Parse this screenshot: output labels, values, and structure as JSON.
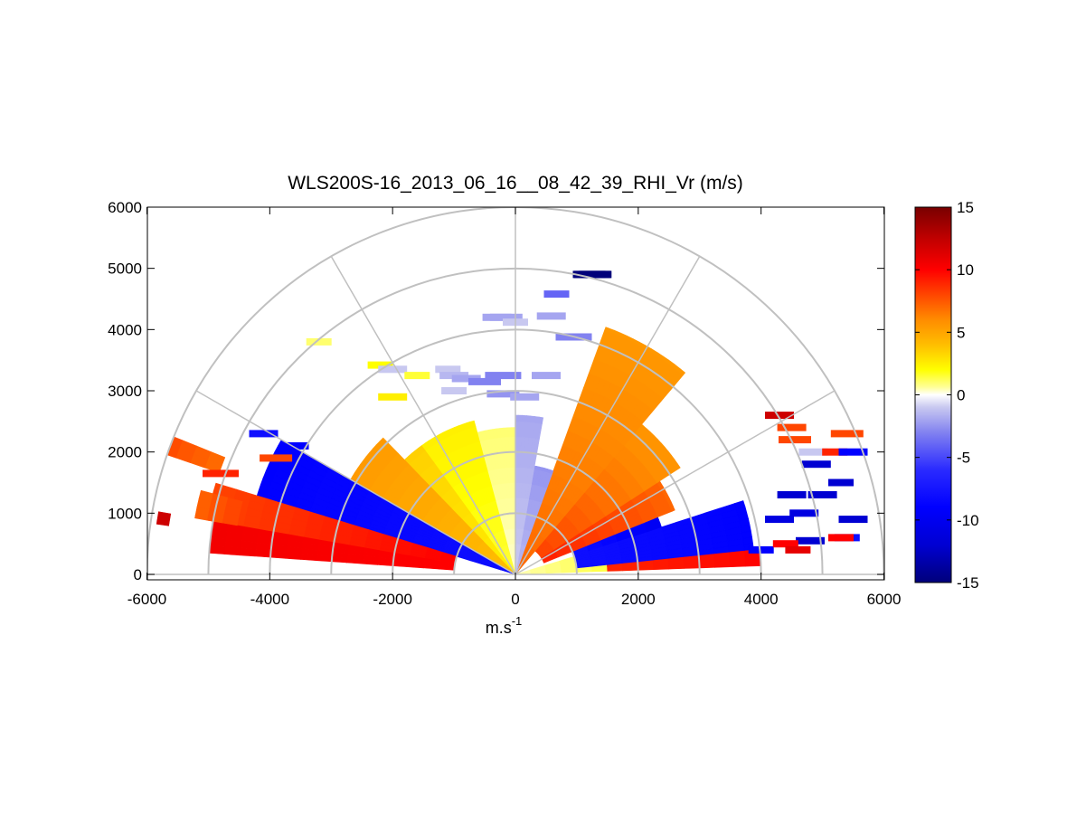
{
  "chart_data": {
    "type": "heatmap",
    "subtype": "polar-sector-rhi",
    "title": "WLS200S-16_2013_06_16__08_42_39_RHI_Vr (m/s)",
    "xlabel_base": "m.s",
    "xlabel_sup": "-1",
    "ylabel": "",
    "xlim": [
      -6000,
      6000
    ],
    "ylim": [
      0,
      6000
    ],
    "x_ticks": [
      -6000,
      -4000,
      -2000,
      0,
      2000,
      4000,
      6000
    ],
    "y_ticks": [
      0,
      1000,
      2000,
      3000,
      4000,
      5000,
      6000
    ],
    "polar_grid": {
      "range_rings": [
        1000,
        2000,
        3000,
        4000,
        5000,
        6000
      ],
      "spokes_deg": [
        0,
        30,
        60,
        90,
        120,
        150,
        180
      ],
      "color": "#c0c0c0"
    },
    "colorbar": {
      "min": -15,
      "max": 15,
      "ticks": [
        -15,
        -10,
        -5,
        0,
        5,
        10,
        15
      ],
      "stops": [
        [
          -15,
          "#00007a"
        ],
        [
          -12,
          "#0000d2"
        ],
        [
          -9,
          "#0000ff"
        ],
        [
          -6,
          "#2a2aff"
        ],
        [
          -3,
          "#8282f0"
        ],
        [
          -1,
          "#c8c8f0"
        ],
        [
          0,
          "#ffffff"
        ],
        [
          0.6,
          "#ffff9a"
        ],
        [
          2,
          "#ffff00"
        ],
        [
          4,
          "#ffbe00"
        ],
        [
          6,
          "#ff8c00"
        ],
        [
          8,
          "#ff4600"
        ],
        [
          10,
          "#ff0000"
        ],
        [
          12.5,
          "#c00000"
        ],
        [
          15,
          "#780000"
        ]
      ]
    },
    "sectors": [
      {
        "a0": 2,
        "a1": 17,
        "r0": 0,
        "r1": 1500,
        "v0": 0.5,
        "v1": 1.5
      },
      {
        "a0": 2,
        "a1": 6,
        "r0": 1500,
        "r1": 4000,
        "v0": 9,
        "v1": 10
      },
      {
        "a0": 6,
        "a1": 18,
        "r0": 1000,
        "r1": 3900,
        "v0": -8,
        "v1": -9
      },
      {
        "a0": 18,
        "a1": 22,
        "r0": 1000,
        "r1": 2500,
        "v0": -8,
        "v1": -10
      },
      {
        "a0": 22,
        "a1": 33,
        "r0": 500,
        "r1": 2800,
        "v0": 9,
        "v1": 7
      },
      {
        "a0": 33,
        "a1": 50,
        "r0": 500,
        "r1": 3200,
        "v0": 8,
        "v1": 5.5
      },
      {
        "a0": 50,
        "a1": 70,
        "r0": 0,
        "r1": 4300,
        "v0": 7,
        "v1": 5.5
      },
      {
        "a0": 70,
        "a1": 80,
        "r0": 0,
        "r1": 1800,
        "v0": -1.5,
        "v1": -2.5
      },
      {
        "a0": 80,
        "a1": 90,
        "r0": 0,
        "r1": 2600,
        "v0": -1,
        "v1": -2
      },
      {
        "a0": 90,
        "a1": 105,
        "r0": 0,
        "r1": 2400,
        "v0": 0.3,
        "v1": 1
      },
      {
        "a0": 105,
        "a1": 126,
        "r0": 0,
        "r1": 2600,
        "v0": 1.5,
        "v1": 2.5
      },
      {
        "a0": 126,
        "a1": 134,
        "r0": 0,
        "r1": 2600,
        "v0": 2.5,
        "v1": 3.5
      },
      {
        "a0": 134,
        "a1": 150,
        "r0": 0,
        "r1": 3100,
        "v0": 4,
        "v1": 5.5
      },
      {
        "a0": 150,
        "a1": 163,
        "r0": 0,
        "r1": 4400,
        "v0": -8,
        "v1": -9
      },
      {
        "a0": 163,
        "a1": 170,
        "r0": 1000,
        "r1": 5100,
        "v0": 10,
        "v1": 8
      },
      {
        "a0": 170,
        "a1": 176,
        "r0": 1000,
        "r1": 5000,
        "v0": 10,
        "v1": 10.5
      },
      {
        "a0": 165,
        "a1": 170,
        "r0": 4600,
        "r1": 5300,
        "v0": 8,
        "v1": 7
      },
      {
        "a0": 170,
        "a1": 172,
        "r0": 5700,
        "r1": 5900,
        "v0": 12,
        "v1": 13
      },
      {
        "a0": 158,
        "a1": 161,
        "r0": 5100,
        "r1": 6000,
        "v0": 7,
        "v1": 8
      }
    ],
    "patches": [
      [
        1300,
        4900,
        4,
        -15
      ],
      [
        1250,
        4900,
        5,
        -15
      ],
      [
        1200,
        4900,
        4,
        -15
      ],
      [
        670,
        4580,
        2,
        -4
      ],
      [
        585,
        4220,
        3,
        -2
      ],
      [
        -300,
        4200,
        3,
        -2
      ],
      [
        -150,
        4200,
        4,
        -2
      ],
      [
        0,
        4120,
        2,
        -1
      ],
      [
        950,
        3880,
        5,
        -3
      ],
      [
        -3200,
        3800,
        2,
        1
      ],
      [
        -2200,
        3420,
        2,
        2
      ],
      [
        -2000,
        3350,
        3,
        -1
      ],
      [
        -1600,
        3250,
        2,
        1.5
      ],
      [
        -1100,
        3350,
        2,
        -1
      ],
      [
        -1000,
        3250,
        3,
        -1.5
      ],
      [
        -800,
        3200,
        3,
        -2
      ],
      [
        -500,
        3150,
        4,
        -3
      ],
      [
        -200,
        3250,
        5,
        -3
      ],
      [
        500,
        3250,
        3,
        -2
      ],
      [
        -2000,
        2900,
        3,
        2.5
      ],
      [
        -1000,
        3000,
        2,
        -1
      ],
      [
        -200,
        2950,
        4,
        -2.5
      ],
      [
        150,
        2900,
        3,
        -2
      ],
      [
        4300,
        2600,
        3,
        12
      ],
      [
        4500,
        2400,
        3,
        8
      ],
      [
        5400,
        2300,
        4,
        8
      ],
      [
        4550,
        2200,
        4,
        8
      ],
      [
        4850,
        2000,
        3,
        -1
      ],
      [
        4900,
        1800,
        3,
        -12
      ],
      [
        5200,
        2000,
        2,
        9
      ],
      [
        5500,
        2000,
        3,
        -9
      ],
      [
        5300,
        1500,
        2,
        -12
      ],
      [
        4500,
        1300,
        3,
        -12
      ],
      [
        5000,
        1300,
        3,
        -12
      ],
      [
        4700,
        1000,
        3,
        -11
      ],
      [
        4300,
        900,
        3,
        -11
      ],
      [
        5500,
        900,
        3,
        -12
      ],
      [
        5400,
        600,
        2,
        -8
      ],
      [
        4800,
        550,
        3,
        -12
      ],
      [
        5300,
        600,
        2,
        10
      ],
      [
        4000,
        400,
        2,
        -9
      ],
      [
        4400,
        500,
        2,
        10
      ],
      [
        4600,
        400,
        2,
        11
      ],
      [
        -4100,
        2300,
        3,
        -8
      ],
      [
        -3900,
        1900,
        4,
        8
      ],
      [
        -4800,
        1650,
        5,
        9
      ],
      [
        -3600,
        2100,
        3,
        -9
      ]
    ]
  }
}
